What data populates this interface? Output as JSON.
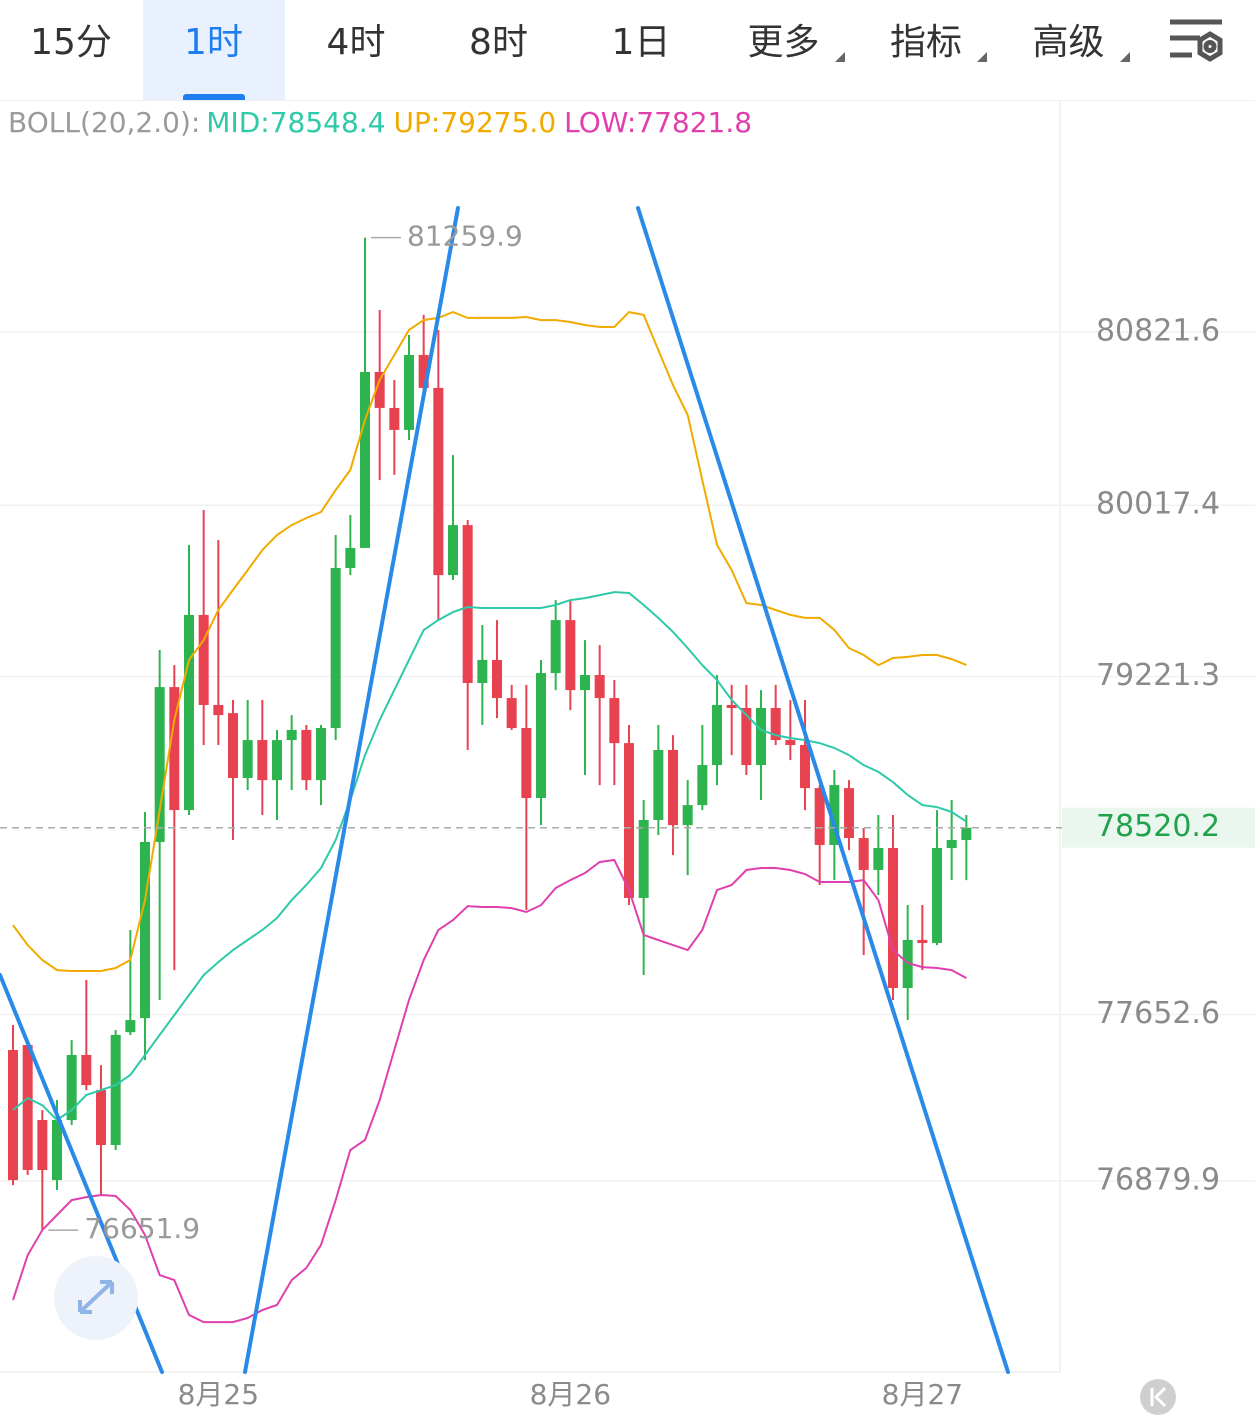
{
  "tabs": [
    "15分",
    "1时",
    "4时",
    "8时",
    "1日",
    "更多",
    "指标",
    "高级"
  ],
  "active_tab": 1,
  "menu_tabs": [
    5,
    6,
    7
  ],
  "chart_data": {
    "type": "candlestick",
    "indicator": "BOLL(20,2.0):",
    "categories": [
      null,
      null,
      null,
      null,
      null,
      null,
      null,
      null,
      null,
      null,
      null,
      null,
      null,
      null,
      "8月25",
      null,
      null,
      null,
      null,
      null,
      null,
      null,
      null,
      null,
      null,
      null,
      null,
      null,
      null,
      null,
      null,
      null,
      null,
      null,
      null,
      null,
      null,
      null,
      "8月26",
      null,
      null,
      null,
      null,
      null,
      null,
      null,
      null,
      null,
      null,
      null,
      null,
      null,
      null,
      null,
      null,
      null,
      null,
      null,
      null,
      null,
      null,
      null,
      "8月27",
      null,
      null,
      null
    ],
    "open": [
      77488,
      77511,
      77163,
      76884,
      77163,
      77465,
      77302,
      77047,
      77571,
      77636,
      78454,
      79173,
      78602,
      79508,
      79090,
      79052,
      78751,
      78927,
      78741,
      78927,
      78974,
      78741,
      78983,
      79726,
      79819,
      80636,
      80469,
      80367,
      80715,
      80562,
      79693,
      79925,
      79192,
      79299,
      79122,
      78983,
      78658,
      79238,
      79484,
      79159,
      79229,
      79122,
      78913,
      78194,
      78556,
      78881,
      78532,
      78625,
      78811,
      79090,
      79076,
      78811,
      79076,
      78927,
      78904,
      78704,
      78440,
      78704,
      78472,
      78324,
      78426,
      77776,
      77999,
      77985,
      78426,
      78463
    ],
    "high": [
      77604,
      77534,
      77209,
      77256,
      77534,
      77813,
      77418,
      77581,
      78045,
      78593,
      79345,
      79275,
      79833,
      79995,
      79856,
      79113,
      79113,
      79113,
      78974,
      79043,
      78997,
      78997,
      79879,
      79972,
      81259.9,
      80924,
      80599,
      80808,
      80901,
      80831,
      80250,
      79949,
      79461,
      79484,
      79183,
      79183,
      79299,
      79577,
      79577,
      79391,
      79368,
      79206,
      78997,
      78649,
      78997,
      78950,
      78741,
      78997,
      79229,
      79183,
      79183,
      79159,
      79183,
      79113,
      79113,
      78718,
      78788,
      78741,
      78519,
      78579,
      78579,
      78161,
      78161,
      78602,
      78649,
      78579
    ],
    "low": [
      76861,
      76908,
      76651.9,
      76838,
      77140,
      77302,
      76815,
      77024,
      77558,
      77441,
      77720,
      77859,
      78579,
      78904,
      78904,
      78463,
      78695,
      78579,
      78556,
      78695,
      78695,
      78625,
      78927,
      79693,
      79819,
      80134,
      80158,
      80320,
      80506,
      79484,
      79670,
      78881,
      78997,
      79029,
      78974,
      78138,
      78532,
      79159,
      79066,
      78765,
      78718,
      78718,
      78161,
      77836,
      78486,
      78393,
      78300,
      78602,
      78718,
      78857,
      78765,
      78649,
      78904,
      78834,
      78602,
      78254,
      78277,
      78416,
      77929,
      78207,
      77720,
      77627,
      77859,
      77975,
      78277,
      78277
    ],
    "close": [
      76884,
      76931,
      76931,
      77163,
      77465,
      77325,
      77047,
      77558,
      77627,
      78454,
      79173,
      78602,
      79508,
      79090,
      79043,
      78751,
      78927,
      78741,
      78927,
      78974,
      78741,
      78983,
      79726,
      79819,
      80636,
      80469,
      80367,
      80715,
      80562,
      79693,
      79925,
      79192,
      79299,
      79122,
      78983,
      78658,
      79238,
      79484,
      79159,
      79229,
      79122,
      78913,
      78194,
      78556,
      78881,
      78532,
      78625,
      78811,
      79090,
      79076,
      78811,
      79076,
      78927,
      78904,
      78704,
      78440,
      78718,
      78472,
      78324,
      78426,
      77776,
      77999,
      77985,
      78426,
      78463,
      78520.2
    ],
    "up_color": "#2eb44f",
    "down_color": "#e8414f",
    "series": [
      {
        "name": "MID",
        "color": "#2ec9a8",
        "values": [
          77209,
          77265,
          77232,
          77163,
          77209,
          77279,
          77302,
          77325,
          77372,
          77465,
          77558,
          77650,
          77743,
          77836,
          77896,
          77952,
          77999,
          78045,
          78101,
          78184,
          78254,
          78333,
          78463,
          78649,
          78857,
          79020,
          79159,
          79299,
          79438,
          79484,
          79521,
          79545,
          79540,
          79540,
          79540,
          79540,
          79540,
          79554,
          79577,
          79586,
          79600,
          79614,
          79610,
          79554,
          79494,
          79429,
          79354,
          79275,
          79206,
          79113,
          79043,
          78974,
          78950,
          78936,
          78927,
          78913,
          78890,
          78857,
          78811,
          78779,
          78732,
          78672,
          78625,
          78616,
          78593,
          78548.4
        ]
      },
      {
        "name": "UP",
        "color": "#f1ab00",
        "values": [
          78068,
          77975,
          77906,
          77859,
          77855,
          77855,
          77855,
          77869,
          77906,
          78184,
          78602,
          79020,
          79299,
          79391,
          79531,
          79624,
          79716,
          79809,
          79879,
          79925,
          79958,
          79986,
          80088,
          80181,
          80413,
          80599,
          80715,
          80831,
          80877,
          80887,
          80914,
          80887,
          80887,
          80887,
          80887,
          80891,
          80877,
          80877,
          80868,
          80854,
          80845,
          80845,
          80914,
          80901,
          80738,
          80575,
          80436,
          80134,
          79833,
          79716,
          79563,
          79554,
          79531,
          79508,
          79494,
          79494,
          79438,
          79354,
          79322,
          79275,
          79308,
          79313,
          79322,
          79322,
          79303,
          79275.0
        ]
      },
      {
        "name": "LOW",
        "color": "#e040ad",
        "values": [
          76327,
          76536,
          76652,
          76722,
          76791,
          76805,
          76815,
          76810,
          76745,
          76629,
          76443,
          76420,
          76258,
          76225,
          76225,
          76225,
          76244,
          76281,
          76304,
          76420,
          76476,
          76583,
          76791,
          77024,
          77070,
          77256,
          77488,
          77720,
          77906,
          78045,
          78091,
          78156,
          78152,
          78152,
          78147,
          78129,
          78161,
          78240,
          78277,
          78310,
          78361,
          78370,
          78231,
          78022,
          77999,
          77975,
          77952,
          78045,
          78231,
          78254,
          78324,
          78333,
          78333,
          78324,
          78305,
          78268,
          78268,
          78268,
          78277,
          78184,
          77952,
          77892,
          77873,
          77869,
          77859,
          77821.8
        ]
      }
    ],
    "ylim": [
      75993.1,
      81898.7
    ],
    "yticks": [
      80821.6,
      80017.4,
      79221.3,
      77652.6,
      76879.9
    ],
    "grid": true,
    "price_color": "#23a24d"
  }
}
